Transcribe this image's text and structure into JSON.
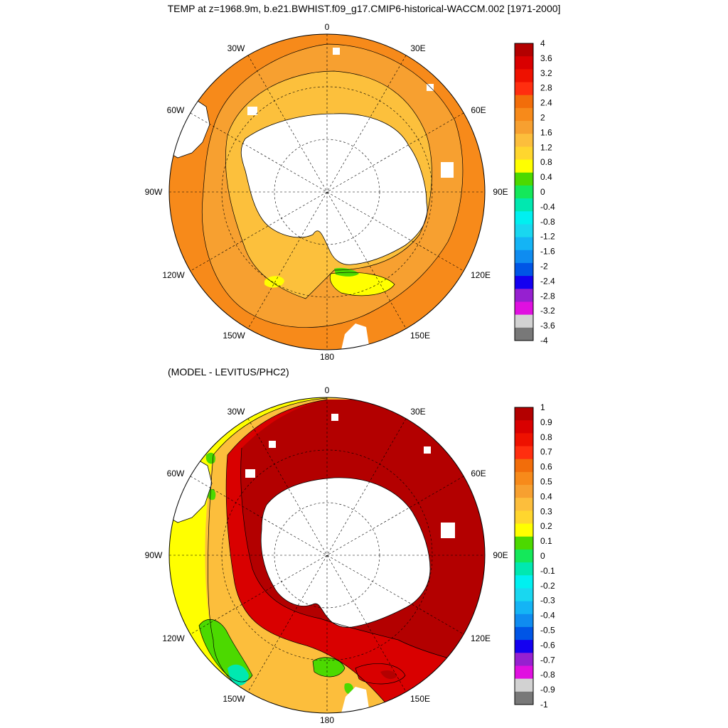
{
  "title": "TEMP at z=1968.9m, b.e21.BWHIST.f09_g17.CMIP6-historical-WACCM.002 [1971-2000]",
  "subtitle": "(MODEL - LEVITUS/PHC2)",
  "longitude_labels": [
    "0",
    "30E",
    "60E",
    "90E",
    "120E",
    "150E",
    "180",
    "150W",
    "120W",
    "90W",
    "60W",
    "30W"
  ],
  "top_panel": {
    "colorbar": {
      "labels": [
        "4",
        "3.6",
        "3.2",
        "2.8",
        "2.4",
        "2",
        "1.6",
        "1.2",
        "0.8",
        "0.4",
        "0",
        "-0.4",
        "-0.8",
        "-1.2",
        "-1.6",
        "-2",
        "-2.4",
        "-2.8",
        "-3.2",
        "-3.6",
        "-4"
      ],
      "colors": [
        "#b30000",
        "#d90000",
        "#ee1100",
        "#ff2e0f",
        "#f26d0a",
        "#f78a1a",
        "#f7a030",
        "#fcbe3c",
        "#ffd62e",
        "#ffff00",
        "#4cd900",
        "#14e85a",
        "#00e8b0",
        "#00f0f0",
        "#19d7f0",
        "#14b4f5",
        "#0f8cf0",
        "#0055e6",
        "#1400f0",
        "#9620d0",
        "#e010e0",
        "#d2d2d2",
        "#787878"
      ]
    }
  },
  "bottom_panel": {
    "colorbar": {
      "labels": [
        "1",
        "0.9",
        "0.8",
        "0.7",
        "0.6",
        "0.5",
        "0.4",
        "0.3",
        "0.2",
        "0.1",
        "0",
        "-0.1",
        "-0.2",
        "-0.3",
        "-0.4",
        "-0.5",
        "-0.6",
        "-0.7",
        "-0.8",
        "-0.9",
        "-1"
      ],
      "colors": [
        "#b30000",
        "#d90000",
        "#ee1100",
        "#ff2e0f",
        "#f26d0a",
        "#f78a1a",
        "#f7a030",
        "#fcbe3c",
        "#ffd62e",
        "#ffff00",
        "#4cd900",
        "#14e85a",
        "#00e8b0",
        "#00f0f0",
        "#19d7f0",
        "#14b4f5",
        "#0f8cf0",
        "#0055e6",
        "#1400f0",
        "#9620d0",
        "#e010e0",
        "#d2d2d2",
        "#787878"
      ]
    }
  },
  "colors": {
    "top_field_warm": "#f7a030",
    "top_field_outer": "#f78a1a",
    "top_field_inner": "#fcc03c",
    "top_field_yellow": "#ffff00",
    "bottom_field_dark_red": "#b30000",
    "bottom_field_red": "#d90000",
    "bottom_field_yellow": "#ffff00",
    "bottom_field_green": "#4cd900",
    "bottom_field_cyan": "#00e8b0",
    "land": "#ffffff"
  }
}
